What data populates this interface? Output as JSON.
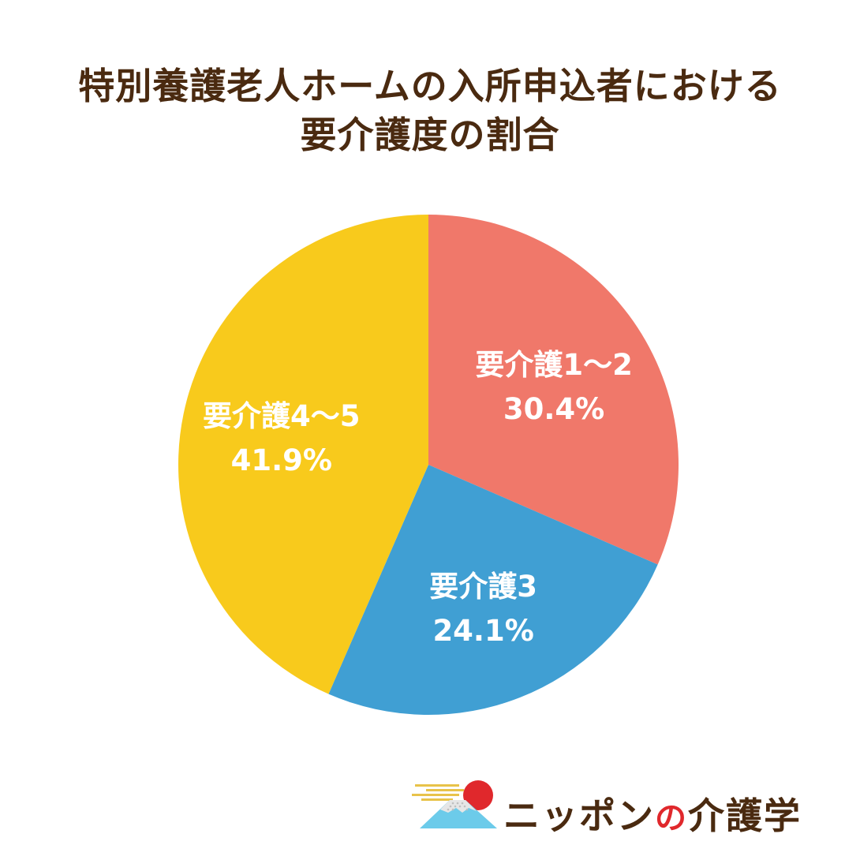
{
  "title": {
    "line1": "特別養護老人ホームの入所申込者における",
    "line2": "要介護度の割合"
  },
  "chart_data": {
    "type": "pie",
    "categories": [
      "要介護1～2",
      "要介護3",
      "要介護4～5"
    ],
    "values": [
      30.4,
      24.1,
      41.9
    ],
    "labels": [
      "30.4%",
      "24.1%",
      "41.9%"
    ],
    "colors": [
      "#F0786A",
      "#409FD3",
      "#F8CA1C"
    ],
    "start": "12 o'clock",
    "direction": "clockwise"
  },
  "logo": {
    "part1": "ニッポン",
    "part2": "の",
    "part3": "介護学",
    "colors": {
      "sun": "#E0282C",
      "mountain": "#6CCBEA",
      "text": "#4A2A10"
    }
  }
}
